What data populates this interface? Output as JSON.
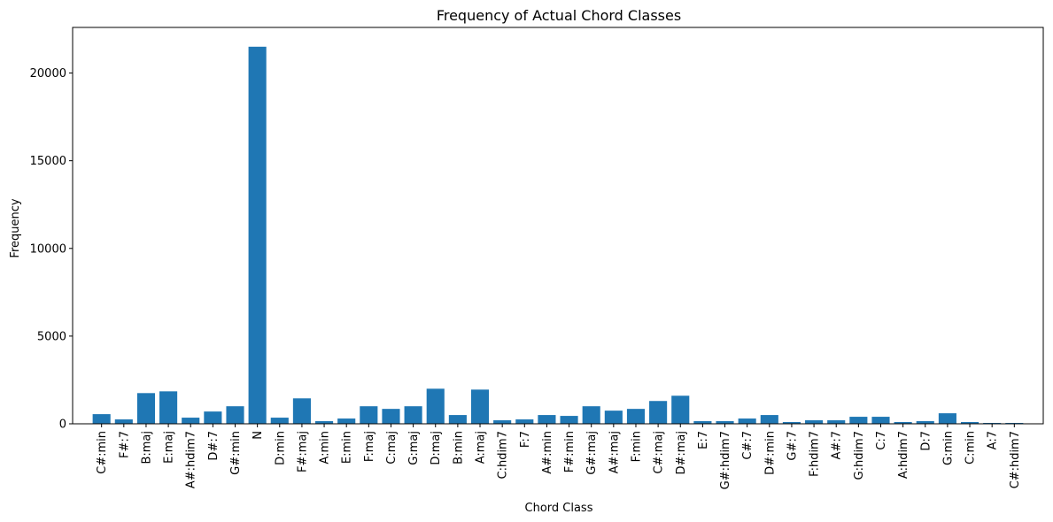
{
  "chart_data": {
    "type": "bar",
    "title": "Frequency of Actual Chord Classes",
    "xlabel": "Chord Class",
    "ylabel": "Frequency",
    "ylim": [
      0,
      22600
    ],
    "yticks": [
      0,
      5000,
      10000,
      15000,
      20000
    ],
    "grid": false,
    "legend": "none",
    "bar_color": "#1f77b4",
    "categories": [
      "C#:min",
      "F#:7",
      "B:maj",
      "E:maj",
      "A#:hdim7",
      "D#:7",
      "G#:min",
      "N",
      "D:min",
      "F#:maj",
      "A:min",
      "E:min",
      "F:maj",
      "C:maj",
      "G:maj",
      "D:maj",
      "B:min",
      "A:maj",
      "C:hdim7",
      "F:7",
      "A#:min",
      "F#:min",
      "G#:maj",
      "A#:maj",
      "F:min",
      "C#:maj",
      "D#:maj",
      "E:7",
      "G#:hdim7",
      "C#:7",
      "D#:min",
      "G#:7",
      "F:hdim7",
      "A#:7",
      "G:hdim7",
      "C:7",
      "A:hdim7",
      "D:7",
      "G:min",
      "C:min",
      "A:7",
      "C#:hdim7"
    ],
    "values": [
      550,
      250,
      1750,
      1850,
      350,
      700,
      1000,
      21500,
      350,
      1450,
      150,
      300,
      1000,
      850,
      1000,
      2000,
      500,
      1950,
      200,
      250,
      500,
      450,
      1000,
      750,
      850,
      1300,
      1600,
      150,
      150,
      300,
      500,
      100,
      200,
      200,
      400,
      400,
      100,
      150,
      600,
      100,
      50,
      50
    ]
  }
}
